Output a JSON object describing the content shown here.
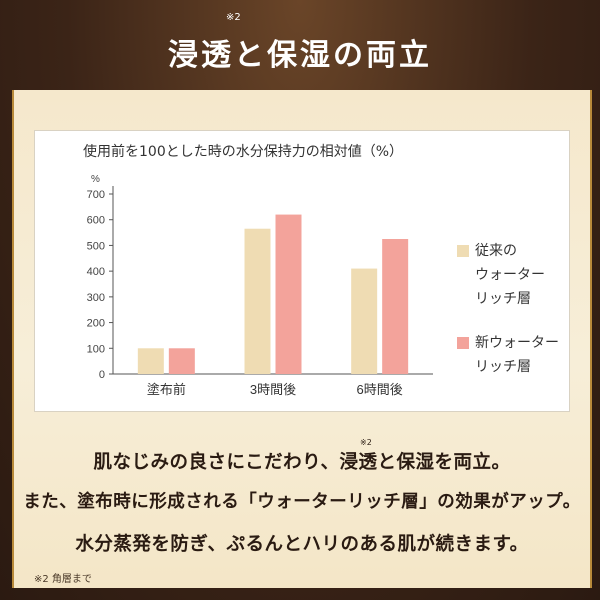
{
  "header": {
    "title": "浸透と保湿の両立",
    "note_mark": "※2"
  },
  "chart_data": {
    "type": "bar",
    "title": "使用前を100とした時の水分保持力の相対値（%）",
    "unit_label": "%",
    "categories": [
      "塗布前",
      "3時間後",
      "6時間後"
    ],
    "series": [
      {
        "name": "従来のウォーターリッチ層",
        "values": [
          100,
          565,
          410
        ],
        "color": "#efdcb3"
      },
      {
        "name": "新ウォーターリッチ層",
        "values": [
          100,
          620,
          525
        ],
        "color": "#f3a39b"
      }
    ],
    "ylim": [
      0,
      700
    ],
    "yticks": [
      0,
      100,
      200,
      300,
      400,
      500,
      600,
      700
    ],
    "grid": false,
    "legend_position": "right"
  },
  "legend": {
    "items": [
      {
        "label": "従来の\nウォーター\nリッチ層",
        "color": "#efdcb3"
      },
      {
        "label": "新ウォーター\nリッチ層",
        "color": "#f3a39b"
      }
    ]
  },
  "copy": {
    "line1": "肌なじみの良さにこだわり、浸透と保湿を両立。",
    "line1_note": "※2",
    "line2": "また、塗布時に形成される「ウォーターリッチ層」の効果がアップ。",
    "line3": "水分蒸発を防ぎ、ぷるんとハリのある肌が続きます。"
  },
  "footnote": "※2 角層まで"
}
